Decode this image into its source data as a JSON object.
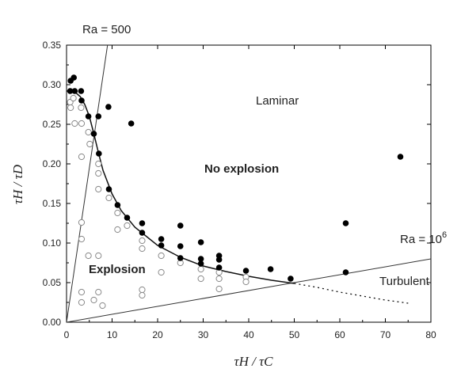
{
  "chart_data": {
    "type": "scatter",
    "title": "",
    "xlabel": "τH / τC",
    "ylabel": "τH / τD",
    "xlim": [
      0,
      80
    ],
    "ylim": [
      0,
      0.35
    ],
    "xticks": [
      0,
      10,
      20,
      30,
      40,
      50,
      60,
      70,
      80
    ],
    "yticks": [
      0.0,
      0.05,
      0.1,
      0.15,
      0.2,
      0.25,
      0.3,
      0.35
    ],
    "ytick_labels": [
      "0.00",
      "0.05",
      "0.10",
      "0.15",
      "0.20",
      "0.25",
      "0.30",
      "0.35"
    ],
    "grid": false,
    "series": [
      {
        "marker": "filled-circle",
        "color": "#000000",
        "points": [
          [
            0.8,
            0.292
          ],
          [
            0.9,
            0.305
          ],
          [
            1.6,
            0.309
          ],
          [
            1.8,
            0.292
          ],
          [
            3.2,
            0.292
          ],
          [
            3.3,
            0.28
          ],
          [
            4.8,
            0.26
          ],
          [
            6.0,
            0.238
          ],
          [
            7.0,
            0.26
          ],
          [
            7.1,
            0.213
          ],
          [
            9.2,
            0.272
          ],
          [
            9.3,
            0.168
          ],
          [
            11.2,
            0.148
          ],
          [
            13.3,
            0.132
          ],
          [
            14.2,
            0.251
          ],
          [
            16.6,
            0.125
          ],
          [
            16.6,
            0.113
          ],
          [
            20.8,
            0.105
          ],
          [
            20.8,
            0.097
          ],
          [
            25.0,
            0.122
          ],
          [
            25.0,
            0.096
          ],
          [
            25.0,
            0.081
          ],
          [
            29.5,
            0.101
          ],
          [
            29.5,
            0.08
          ],
          [
            29.5,
            0.074
          ],
          [
            33.5,
            0.084
          ],
          [
            33.5,
            0.079
          ],
          [
            33.5,
            0.069
          ],
          [
            39.4,
            0.065
          ],
          [
            44.8,
            0.067
          ],
          [
            49.2,
            0.055
          ],
          [
            61.3,
            0.125
          ],
          [
            61.3,
            0.063
          ],
          [
            73.3,
            0.209
          ]
        ]
      },
      {
        "marker": "open-circle",
        "color": "#888888",
        "points": [
          [
            0.8,
            0.278
          ],
          [
            0.9,
            0.271
          ],
          [
            1.5,
            0.283
          ],
          [
            1.8,
            0.251
          ],
          [
            3.2,
            0.271
          ],
          [
            3.3,
            0.251
          ],
          [
            3.3,
            0.209
          ],
          [
            3.3,
            0.126
          ],
          [
            3.3,
            0.105
          ],
          [
            3.3,
            0.038
          ],
          [
            3.3,
            0.025
          ],
          [
            4.8,
            0.24
          ],
          [
            4.8,
            0.084
          ],
          [
            5.1,
            0.225
          ],
          [
            6.0,
            0.028
          ],
          [
            7.0,
            0.2
          ],
          [
            7.0,
            0.188
          ],
          [
            7.0,
            0.168
          ],
          [
            7.0,
            0.084
          ],
          [
            7.0,
            0.038
          ],
          [
            7.9,
            0.021
          ],
          [
            9.3,
            0.157
          ],
          [
            11.2,
            0.138
          ],
          [
            11.2,
            0.117
          ],
          [
            13.3,
            0.122
          ],
          [
            16.6,
            0.103
          ],
          [
            16.6,
            0.093
          ],
          [
            16.6,
            0.041
          ],
          [
            16.6,
            0.034
          ],
          [
            20.8,
            0.084
          ],
          [
            20.8,
            0.063
          ],
          [
            25.0,
            0.075
          ],
          [
            29.5,
            0.067
          ],
          [
            29.5,
            0.055
          ],
          [
            33.5,
            0.063
          ],
          [
            33.5,
            0.055
          ],
          [
            33.5,
            0.042
          ],
          [
            39.4,
            0.057
          ],
          [
            39.4,
            0.051
          ]
        ]
      }
    ],
    "fit_curve": {
      "style": "solid",
      "points": [
        [
          0,
          0.292
        ],
        [
          1,
          0.292
        ],
        [
          2,
          0.29
        ],
        [
          3,
          0.285
        ],
        [
          4,
          0.275
        ],
        [
          5,
          0.26
        ],
        [
          6,
          0.238
        ],
        [
          7,
          0.214
        ],
        [
          8,
          0.192
        ],
        [
          10,
          0.162
        ],
        [
          12,
          0.141
        ],
        [
          15,
          0.12
        ],
        [
          20,
          0.097
        ],
        [
          25,
          0.082
        ],
        [
          30,
          0.071
        ],
        [
          35,
          0.064
        ],
        [
          40,
          0.058
        ],
        [
          45,
          0.053
        ],
        [
          50,
          0.049
        ]
      ]
    },
    "extrapolation_curve": {
      "style": "dotted",
      "points": [
        [
          50,
          0.049
        ],
        [
          55,
          0.044
        ],
        [
          60,
          0.038
        ],
        [
          65,
          0.033
        ],
        [
          70,
          0.028
        ],
        [
          75,
          0.024
        ]
      ]
    },
    "boundary_lines": [
      {
        "label": "Ra = 500",
        "from": [
          0,
          0
        ],
        "to": [
          9,
          0.35
        ]
      },
      {
        "label": "Ra = 106",
        "label_base": "Ra = 10",
        "label_exp": "6",
        "from": [
          0,
          0
        ],
        "to": [
          80,
          0.08
        ]
      }
    ],
    "annotations": {
      "laminar": "Laminar",
      "no_explosion": "No explosion",
      "explosion": "Explosion",
      "turbulent": "Turbulent"
    }
  }
}
